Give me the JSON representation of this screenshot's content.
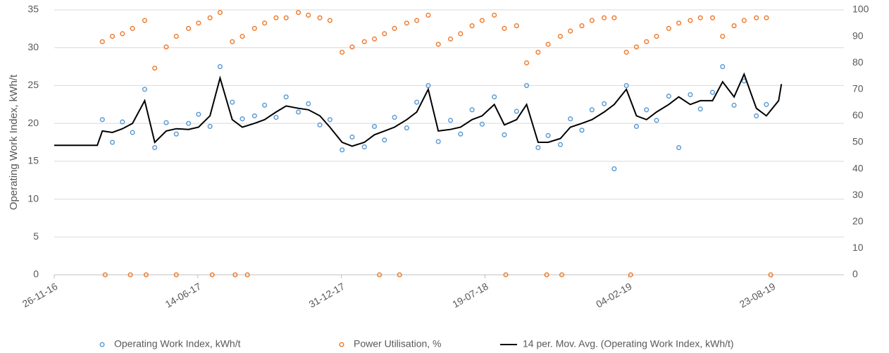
{
  "chart_data": {
    "type": "scatter",
    "y_label": "Operating Work Index, kWh/t",
    "xlim": [
      "2016-11-26",
      "2019-12-01"
    ],
    "xticks": [
      {
        "value": "2016-11-26",
        "label": "26-11-16"
      },
      {
        "value": "2017-06-14",
        "label": "14-06-17"
      },
      {
        "value": "2017-12-31",
        "label": "31-12-17"
      },
      {
        "value": "2018-07-19",
        "label": "19-07-18"
      },
      {
        "value": "2019-02-04",
        "label": "04-02-19"
      },
      {
        "value": "2019-08-23",
        "label": "23-08-19"
      }
    ],
    "ylim": [
      0,
      35
    ],
    "yticks": [
      0,
      5,
      10,
      15,
      20,
      25,
      30,
      35
    ],
    "y2lim": [
      0,
      100
    ],
    "y2ticks": [
      0,
      10,
      20,
      30,
      40,
      50,
      60,
      70,
      80,
      90,
      100
    ],
    "grid": true,
    "legend": "bottom",
    "series": [
      {
        "name": "Operating Work Index, kWh/t",
        "type": "scatter",
        "color": "#5b9bd5",
        "x": [
          "2017-02-01",
          "2017-02-15",
          "2017-03-01",
          "2017-03-15",
          "2017-04-01",
          "2017-04-15",
          "2017-05-01",
          "2017-05-15",
          "2017-06-01",
          "2017-06-15",
          "2017-07-01",
          "2017-07-15",
          "2017-08-01",
          "2017-08-15",
          "2017-09-01",
          "2017-09-15",
          "2017-10-01",
          "2017-10-15",
          "2017-11-01",
          "2017-11-15",
          "2017-12-01",
          "2017-12-15",
          "2018-01-01",
          "2018-01-15",
          "2018-02-01",
          "2018-02-15",
          "2018-03-01",
          "2018-03-15",
          "2018-04-01",
          "2018-04-15",
          "2018-05-01",
          "2018-05-15",
          "2018-06-01",
          "2018-06-15",
          "2018-07-01",
          "2018-07-15",
          "2018-08-01",
          "2018-08-15",
          "2018-09-01",
          "2018-09-15",
          "2018-10-01",
          "2018-10-15",
          "2018-11-01",
          "2018-11-15",
          "2018-12-01",
          "2018-12-15",
          "2019-01-01",
          "2019-01-15",
          "2019-02-01",
          "2019-02-15",
          "2019-03-01",
          "2019-03-15",
          "2019-04-01",
          "2019-04-15",
          "2019-05-01",
          "2019-05-15",
          "2019-06-01",
          "2019-06-15",
          "2019-07-01",
          "2019-07-15",
          "2019-08-01",
          "2019-08-15"
        ],
        "values": [
          20.5,
          17.5,
          20.2,
          18.8,
          24.5,
          16.8,
          20.1,
          18.6,
          20.0,
          21.2,
          19.6,
          27.5,
          22.8,
          20.6,
          21.0,
          22.4,
          20.8,
          23.5,
          21.5,
          22.6,
          19.8,
          20.5,
          16.5,
          18.2,
          16.9,
          19.6,
          17.8,
          20.8,
          19.4,
          22.8,
          25.0,
          17.6,
          20.4,
          18.6,
          21.8,
          19.9,
          23.5,
          18.5,
          21.6,
          25.0,
          16.8,
          18.4,
          17.2,
          20.6,
          19.1,
          21.8,
          22.6,
          14.0,
          25.0,
          19.6,
          21.8,
          20.4,
          23.6,
          16.8,
          23.8,
          21.9,
          24.1,
          27.5,
          22.4,
          25.6,
          21.0,
          22.5
        ]
      },
      {
        "name": "Power Utilisation, %",
        "type": "scatter",
        "axis": "y2",
        "color": "#ed7d31",
        "x": [
          "2017-02-01",
          "2017-02-15",
          "2017-03-01",
          "2017-03-15",
          "2017-04-01",
          "2017-04-15",
          "2017-05-01",
          "2017-05-15",
          "2017-06-01",
          "2017-06-15",
          "2017-07-01",
          "2017-07-15",
          "2017-08-01",
          "2017-08-15",
          "2017-09-01",
          "2017-09-15",
          "2017-10-01",
          "2017-10-15",
          "2017-11-01",
          "2017-11-15",
          "2017-12-01",
          "2017-12-15",
          "2018-01-01",
          "2018-01-15",
          "2018-02-01",
          "2018-02-15",
          "2018-03-01",
          "2018-03-15",
          "2018-04-01",
          "2018-04-15",
          "2018-05-01",
          "2018-05-15",
          "2018-06-01",
          "2018-06-15",
          "2018-07-01",
          "2018-07-15",
          "2018-08-01",
          "2018-08-15",
          "2018-09-01",
          "2018-09-15",
          "2018-10-01",
          "2018-10-15",
          "2018-11-01",
          "2018-11-15",
          "2018-12-01",
          "2018-12-15",
          "2019-01-01",
          "2019-01-15",
          "2019-02-01",
          "2019-02-15",
          "2019-03-01",
          "2019-03-15",
          "2019-04-01",
          "2019-04-15",
          "2019-05-01",
          "2019-05-15",
          "2019-06-01",
          "2019-06-15",
          "2019-07-01",
          "2019-07-15",
          "2019-08-01",
          "2019-08-15",
          "2017-02-05",
          "2017-03-12",
          "2017-04-03",
          "2017-05-15",
          "2017-07-04",
          "2017-08-05",
          "2017-08-22",
          "2018-02-22",
          "2018-03-22",
          "2018-08-17",
          "2018-10-13",
          "2018-11-03",
          "2019-02-07",
          "2019-08-21"
        ],
        "values": [
          88,
          90,
          91,
          93,
          96,
          78,
          86,
          90,
          93,
          95,
          97,
          99,
          88,
          90,
          93,
          95,
          97,
          97,
          99,
          98,
          97,
          96,
          84,
          86,
          88,
          89,
          91,
          93,
          95,
          96,
          98,
          87,
          89,
          91,
          94,
          96,
          98,
          93,
          94,
          80,
          84,
          87,
          90,
          92,
          94,
          96,
          97,
          97,
          84,
          86,
          88,
          90,
          93,
          95,
          96,
          97,
          97,
          90,
          94,
          96,
          97,
          97,
          0,
          0,
          0,
          0,
          0,
          0,
          0,
          0,
          0,
          0,
          0,
          0,
          0,
          0
        ]
      },
      {
        "name": "14 per. Mov. Avg. (Operating Work Index, kWh/t)",
        "type": "line",
        "color": "#000000",
        "x": [
          "2016-11-26",
          "2017-01-25",
          "2017-02-01",
          "2017-02-15",
          "2017-03-01",
          "2017-03-15",
          "2017-04-01",
          "2017-04-15",
          "2017-05-01",
          "2017-05-15",
          "2017-06-01",
          "2017-06-15",
          "2017-07-01",
          "2017-07-15",
          "2017-08-01",
          "2017-08-15",
          "2017-09-01",
          "2017-09-15",
          "2017-10-01",
          "2017-10-15",
          "2017-11-01",
          "2017-11-15",
          "2017-12-01",
          "2017-12-15",
          "2018-01-01",
          "2018-01-15",
          "2018-02-01",
          "2018-02-15",
          "2018-03-01",
          "2018-03-15",
          "2018-04-01",
          "2018-04-15",
          "2018-05-01",
          "2018-05-15",
          "2018-06-01",
          "2018-06-15",
          "2018-07-01",
          "2018-07-15",
          "2018-08-01",
          "2018-08-15",
          "2018-09-01",
          "2018-09-15",
          "2018-10-01",
          "2018-10-15",
          "2018-11-01",
          "2018-11-15",
          "2018-12-01",
          "2018-12-15",
          "2019-01-01",
          "2019-01-15",
          "2019-02-01",
          "2019-02-15",
          "2019-03-01",
          "2019-03-15",
          "2019-04-01",
          "2019-04-15",
          "2019-05-01",
          "2019-05-15",
          "2019-06-01",
          "2019-06-15",
          "2019-07-01",
          "2019-07-15",
          "2019-08-01",
          "2019-08-15",
          "2019-09-01",
          "2019-09-05"
        ],
        "values": [
          17.1,
          17.1,
          19.0,
          18.8,
          19.3,
          20.0,
          23.0,
          17.5,
          19.0,
          19.3,
          19.2,
          19.5,
          21.0,
          26.0,
          20.5,
          19.5,
          20.0,
          20.5,
          21.5,
          22.3,
          22.0,
          21.8,
          21.0,
          19.5,
          17.5,
          17.0,
          17.5,
          18.5,
          19.0,
          19.5,
          20.5,
          21.5,
          24.5,
          19.0,
          19.2,
          19.5,
          20.5,
          21.0,
          22.5,
          19.8,
          20.5,
          22.5,
          17.5,
          17.5,
          18.0,
          19.5,
          20.0,
          20.5,
          21.5,
          22.5,
          24.5,
          21.0,
          20.5,
          21.5,
          22.5,
          23.5,
          22.5,
          23.0,
          23.0,
          25.5,
          23.5,
          26.5,
          22.0,
          21.0,
          23.0,
          25.2
        ]
      }
    ]
  }
}
